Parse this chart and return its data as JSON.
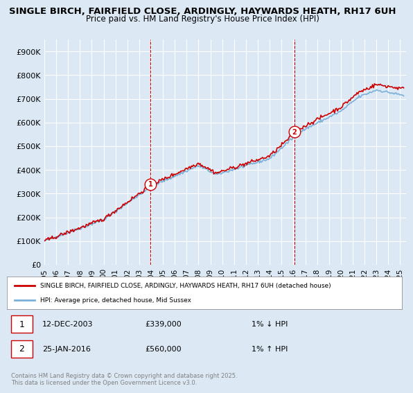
{
  "title_line1": "SINGLE BIRCH, FAIRFIELD CLOSE, ARDINGLY, HAYWARDS HEATH, RH17 6UH",
  "title_line2": "Price paid vs. HM Land Registry's House Price Index (HPI)",
  "ylabel": "",
  "ylim": [
    0,
    950000
  ],
  "yticks": [
    0,
    100000,
    200000,
    300000,
    400000,
    500000,
    600000,
    700000,
    800000,
    900000
  ],
  "ytick_labels": [
    "£0",
    "£100K",
    "£200K",
    "£300K",
    "£400K",
    "£500K",
    "£600K",
    "£700K",
    "£800K",
    "£900K"
  ],
  "bg_color": "#dce9f5",
  "plot_bg_color": "#dce9f5",
  "grid_color": "#ffffff",
  "line_color_hpi": "#7ab0d8",
  "line_color_price": "#cc0000",
  "marker1_x": 2003.95,
  "marker1_y": 339000,
  "marker2_x": 2016.07,
  "marker2_y": 560000,
  "marker1_label": "1",
  "marker2_label": "2",
  "vline1_x": 2003.95,
  "vline2_x": 2016.07,
  "legend_label1": "SINGLE BIRCH, FAIRFIELD CLOSE, ARDINGLY, HAYWARDS HEATH, RH17 6UH (detached house)",
  "legend_label2": "HPI: Average price, detached house, Mid Sussex",
  "annotation1_num": "1",
  "annotation1_date": "12-DEC-2003",
  "annotation1_price": "£339,000",
  "annotation1_hpi": "1% ↓ HPI",
  "annotation2_num": "2",
  "annotation2_date": "25-JAN-2016",
  "annotation2_price": "£560,000",
  "annotation2_hpi": "1% ↑ HPI",
  "copyright_text": "Contains HM Land Registry data © Crown copyright and database right 2025.\nThis data is licensed under the Open Government Licence v3.0.",
  "xmin": 1995,
  "xmax": 2025.5,
  "xticks": [
    1995,
    1996,
    1997,
    1998,
    1999,
    2000,
    2001,
    2002,
    2003,
    2004,
    2005,
    2006,
    2007,
    2008,
    2009,
    2010,
    2011,
    2012,
    2013,
    2014,
    2015,
    2016,
    2017,
    2018,
    2019,
    2020,
    2021,
    2022,
    2023,
    2024,
    2025
  ]
}
